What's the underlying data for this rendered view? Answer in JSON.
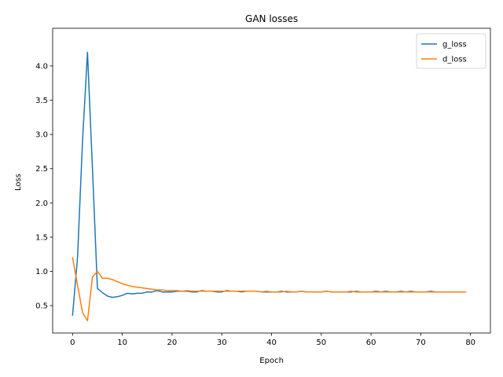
{
  "chart_data": {
    "type": "line",
    "title": "GAN losses",
    "xlabel": "Epoch",
    "ylabel": "Loss",
    "xlim": [
      -4,
      84
    ],
    "ylim": [
      0.1,
      4.55
    ],
    "xticks": [
      0,
      10,
      20,
      30,
      40,
      50,
      60,
      70,
      80
    ],
    "yticks": [
      0.5,
      1.0,
      1.5,
      2.0,
      2.5,
      3.0,
      3.5,
      4.0
    ],
    "ytick_labels": [
      "0.5",
      "1.0",
      "1.5",
      "2.0",
      "2.5",
      "3.0",
      "3.5",
      "4.0"
    ],
    "grid": false,
    "legend": "top-right",
    "x": [
      0,
      1,
      2,
      3,
      4,
      5,
      6,
      7,
      8,
      9,
      10,
      11,
      12,
      13,
      14,
      15,
      16,
      17,
      18,
      19,
      20,
      21,
      22,
      23,
      24,
      25,
      26,
      27,
      28,
      29,
      30,
      31,
      32,
      33,
      34,
      35,
      36,
      37,
      38,
      39,
      40,
      41,
      42,
      43,
      44,
      45,
      46,
      47,
      48,
      49,
      50,
      51,
      52,
      53,
      54,
      55,
      56,
      57,
      58,
      59,
      60,
      61,
      62,
      63,
      64,
      65,
      66,
      67,
      68,
      69,
      70,
      71,
      72,
      73,
      74,
      75,
      76,
      77,
      78,
      79
    ],
    "series": [
      {
        "name": "g_loss",
        "color": "#1f77b4",
        "values": [
          0.36,
          1.2,
          2.9,
          4.2,
          2.5,
          0.75,
          0.69,
          0.64,
          0.62,
          0.63,
          0.65,
          0.68,
          0.67,
          0.68,
          0.68,
          0.7,
          0.7,
          0.72,
          0.7,
          0.7,
          0.7,
          0.71,
          0.71,
          0.71,
          0.7,
          0.7,
          0.72,
          0.71,
          0.71,
          0.7,
          0.7,
          0.72,
          0.71,
          0.71,
          0.7,
          0.71,
          0.71,
          0.71,
          0.7,
          0.7,
          0.7,
          0.7,
          0.71,
          0.7,
          0.7,
          0.7,
          0.71,
          0.7,
          0.7,
          0.7,
          0.7,
          0.71,
          0.7,
          0.7,
          0.7,
          0.7,
          0.7,
          0.71,
          0.7,
          0.7,
          0.7,
          0.71,
          0.7,
          0.71,
          0.7,
          0.7,
          0.71,
          0.7,
          0.71,
          0.7,
          0.7,
          0.7,
          0.71,
          0.7,
          0.7,
          0.7,
          0.7,
          0.7,
          0.7,
          0.7
        ]
      },
      {
        "name": "d_loss",
        "color": "#ff7f0e",
        "values": [
          1.2,
          0.8,
          0.4,
          0.28,
          0.92,
          1.0,
          0.9,
          0.9,
          0.88,
          0.85,
          0.82,
          0.8,
          0.78,
          0.77,
          0.76,
          0.75,
          0.74,
          0.73,
          0.73,
          0.72,
          0.72,
          0.72,
          0.71,
          0.72,
          0.71,
          0.71,
          0.71,
          0.71,
          0.71,
          0.71,
          0.71,
          0.71,
          0.71,
          0.71,
          0.71,
          0.71,
          0.71,
          0.71,
          0.7,
          0.71,
          0.7,
          0.7,
          0.7,
          0.71,
          0.7,
          0.7,
          0.71,
          0.7,
          0.7,
          0.7,
          0.7,
          0.71,
          0.7,
          0.7,
          0.7,
          0.7,
          0.71,
          0.7,
          0.7,
          0.7,
          0.7,
          0.7,
          0.7,
          0.7,
          0.7,
          0.7,
          0.7,
          0.7,
          0.7,
          0.7,
          0.7,
          0.7,
          0.7,
          0.7,
          0.7,
          0.7,
          0.7,
          0.7,
          0.7,
          0.7
        ]
      }
    ]
  }
}
